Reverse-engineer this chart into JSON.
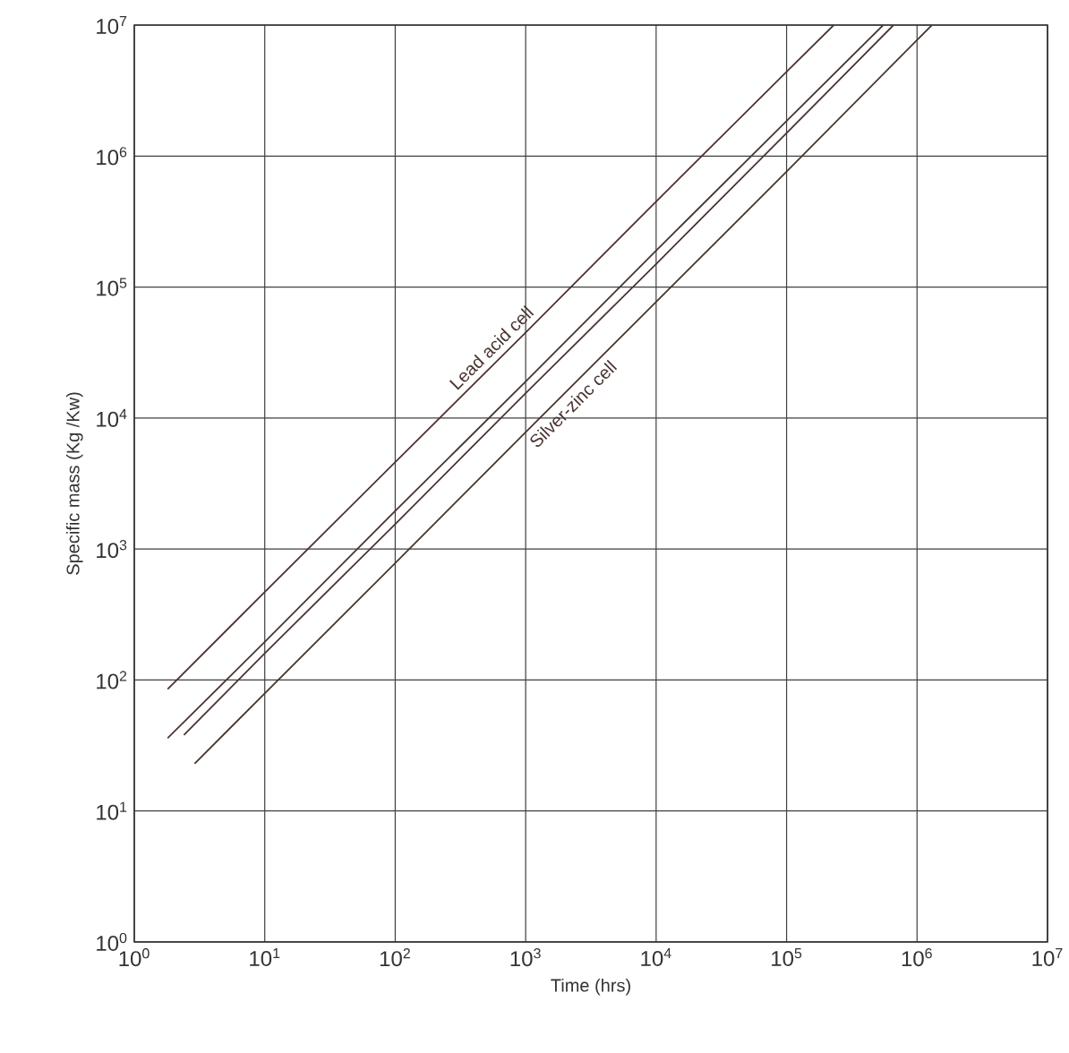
{
  "chart_data": {
    "type": "line",
    "xlabel": "Time (hrs)",
    "ylabel": "Specific mass (Kg /Kw)",
    "log": "xy",
    "grid": true,
    "marker": "none",
    "line_style": "solid",
    "xlim": [
      1,
      10000000
    ],
    "ylim": [
      1,
      10000000
    ],
    "xticks": [
      {
        "value": 1,
        "label": "10$^{0}$"
      },
      {
        "value": 10,
        "label": "10$^{1}$"
      },
      {
        "value": 100,
        "label": "10$^{2}$"
      },
      {
        "value": 1000,
        "label": "10$^{3}$"
      },
      {
        "value": 10000,
        "label": "10$^{4}$"
      },
      {
        "value": 100000,
        "label": "10$^{5}$"
      },
      {
        "value": 1000000,
        "label": "10$^{6}$"
      },
      {
        "value": 10000000,
        "label": "10$^{7}$"
      }
    ],
    "yticks": [
      {
        "value": 1,
        "label": "10$^{0}$"
      },
      {
        "value": 10,
        "label": "10$^{1}$"
      },
      {
        "value": 100,
        "label": "10$^{2}$"
      },
      {
        "value": 1000,
        "label": "10$^{3}$"
      },
      {
        "value": 10000,
        "label": "10$^{4}$"
      },
      {
        "value": 100000,
        "label": "10$^{5}$"
      },
      {
        "value": 1000000,
        "label": "10$^{6}$"
      },
      {
        "value": 10000000,
        "label": "10$^{7}$"
      }
    ],
    "series": [
      {
        "name": "Lead acid cell",
        "color": "#4a3530",
        "x": [
          1.8,
          10,
          100,
          1000,
          10000,
          100000,
          230000
        ],
        "values": [
          85,
          470,
          4600,
          45000,
          450000,
          4400000,
          10000000
        ]
      },
      {
        "color": "#4a3530",
        "x": [
          1.8,
          10,
          100,
          1000,
          10000,
          100000,
          550000
        ],
        "values": [
          36,
          195,
          1950,
          19000,
          190000,
          1850000,
          10000000
        ]
      },
      {
        "color": "#4a3530",
        "x": [
          2.4,
          10,
          100,
          1000,
          10000,
          100000,
          660000
        ],
        "values": [
          38,
          160,
          1550,
          15500,
          150000,
          1500000,
          10000000
        ]
      },
      {
        "name": "Silver-zinc cell",
        "color": "#4a3530",
        "x": [
          2.9,
          10,
          100,
          1000,
          10000,
          100000,
          1300000
        ],
        "values": [
          23,
          79,
          780,
          7800,
          77000,
          760000,
          10000000
        ]
      }
    ]
  }
}
